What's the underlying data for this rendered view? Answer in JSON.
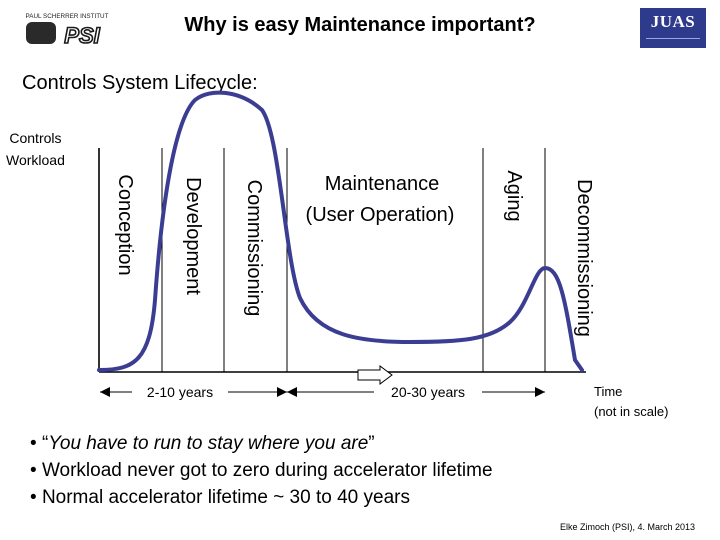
{
  "slide": {
    "title": "Why is easy Maintenance important?",
    "subtitle": "Controls System Lifecycle:",
    "footer": "Elke Zimoch (PSI), 4. March 2013"
  },
  "logos": {
    "psi": {
      "small_text": "PAUL SCHERRER INSTITUT",
      "big_text": "PSI"
    },
    "juas": {
      "text": "JUAS"
    }
  },
  "diagram": {
    "y_axis_label_line1": "Controls",
    "y_axis_label_line2": "Workload",
    "phases": [
      "Conception",
      "Development",
      "Commissioning",
      "Maintenance (User Operation)",
      "Aging",
      "Decommissioning"
    ],
    "maintenance_line1": "Maintenance",
    "maintenance_line2": "(User Operation)",
    "span_early": "2-10 years",
    "span_maintenance": "20-30 years",
    "x_axis_label_line1": "Time",
    "x_axis_label_line2": "(not in scale)",
    "curve_color": "#3b3d93"
  },
  "bullets": {
    "quote_open": "“",
    "quote_text": "You have to run to stay where you are",
    "quote_close": "”",
    "line2": "Workload never got to zero during accelerator lifetime",
    "line3": "Normal accelerator lifetime ~ 30 to 40 years"
  }
}
